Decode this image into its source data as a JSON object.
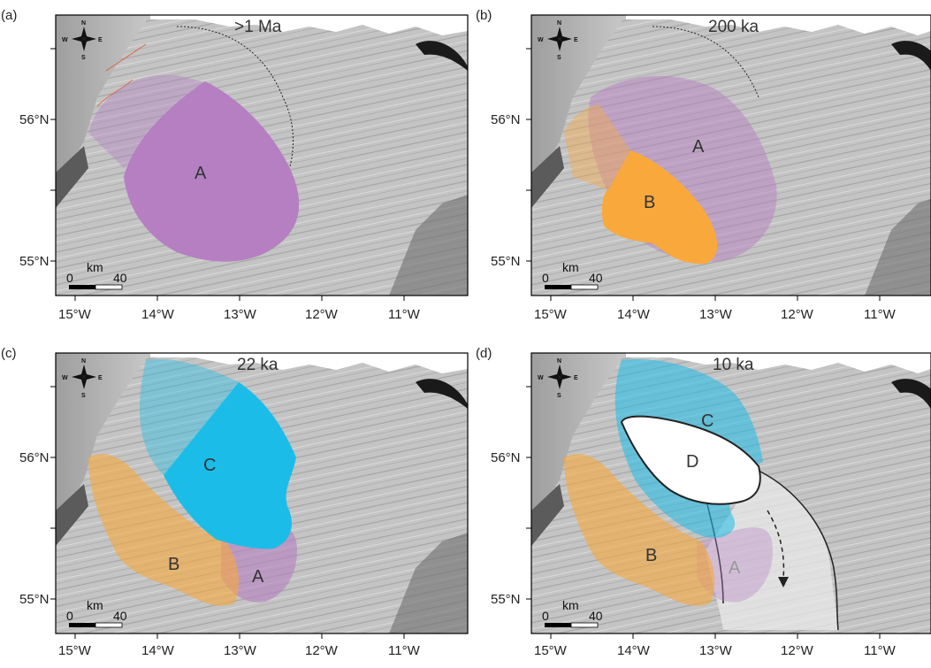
{
  "figure": {
    "panels": [
      {
        "letter": "(a)",
        "age": ">1 Ma",
        "regions": [
          "A"
        ]
      },
      {
        "letter": "(b)",
        "age": "200 ka",
        "regions": [
          "A",
          "B"
        ]
      },
      {
        "letter": "(c)",
        "age": "22 ka",
        "regions": [
          "C",
          "B",
          "A"
        ]
      },
      {
        "letter": "(d)",
        "age": "10 ka",
        "regions": [
          "C",
          "D",
          "B",
          "A"
        ]
      }
    ],
    "lat_labels": [
      "56°N",
      "55°N"
    ],
    "lon_labels": [
      "15°W",
      "14°W",
      "13°W",
      "12°W",
      "11°W"
    ],
    "scale_bar": {
      "unit": "km",
      "start": "0",
      "end": "40"
    },
    "compass": {
      "n": "N",
      "s": "S",
      "e": "E",
      "w": "W"
    },
    "colors": {
      "A": "#b57fc2",
      "B": "#f9a93b",
      "C": "#1bbde8",
      "D": "#ffffff",
      "seafloor": "#b9b9b9",
      "frame": "#000000"
    }
  }
}
